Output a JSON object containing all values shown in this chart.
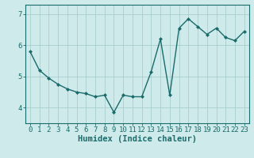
{
  "x": [
    0,
    1,
    2,
    3,
    4,
    5,
    6,
    7,
    8,
    9,
    10,
    11,
    12,
    13,
    14,
    15,
    16,
    17,
    18,
    19,
    20,
    21,
    22,
    23
  ],
  "y": [
    5.8,
    5.2,
    4.95,
    4.75,
    4.6,
    4.5,
    4.45,
    4.35,
    4.4,
    3.85,
    4.4,
    4.35,
    4.35,
    5.15,
    6.2,
    4.4,
    6.55,
    6.85,
    6.6,
    6.35,
    6.55,
    6.25,
    6.15,
    6.45
  ],
  "line_color": "#1a6b6b",
  "marker": "D",
  "marker_size": 2.0,
  "bg_color": "#ceeaea",
  "grid_color": "#aacece",
  "xlabel": "Humidex (Indice chaleur)",
  "ylim": [
    3.5,
    7.3
  ],
  "xlim": [
    -0.5,
    23.5
  ],
  "yticks": [
    4,
    5,
    6,
    7
  ],
  "xticks": [
    0,
    1,
    2,
    3,
    4,
    5,
    6,
    7,
    8,
    9,
    10,
    11,
    12,
    13,
    14,
    15,
    16,
    17,
    18,
    19,
    20,
    21,
    22,
    23
  ],
  "tick_label_fontsize": 6.5,
  "xlabel_fontsize": 7.5,
  "line_width": 1.0
}
